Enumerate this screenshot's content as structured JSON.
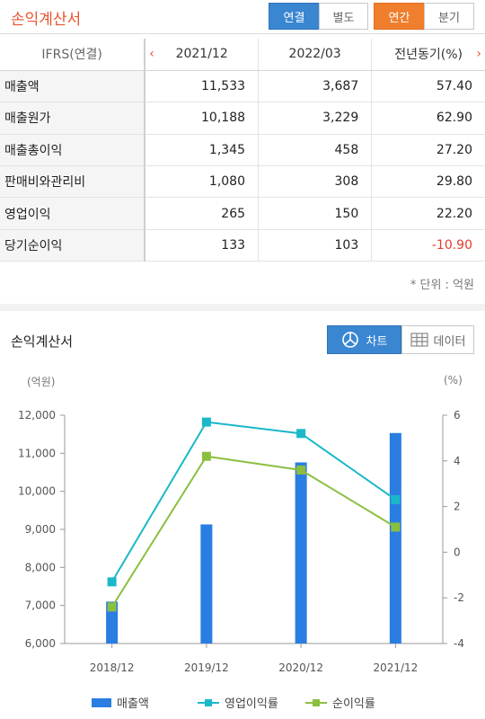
{
  "header": {
    "title": "손익계산서",
    "toggle_consolidated": "연결",
    "toggle_separate": "별도",
    "toggle_annual": "연간",
    "toggle_quarterly": "분기"
  },
  "table": {
    "label_header": "IFRS(연결)",
    "columns": [
      "2021/12",
      "2022/03",
      "전년동기(%)"
    ],
    "rows": [
      {
        "label": "매출액",
        "values": [
          "11,533",
          "3,687",
          "57.40"
        ]
      },
      {
        "label": "매출원가",
        "values": [
          "10,188",
          "3,229",
          "62.90"
        ]
      },
      {
        "label": "매출총이익",
        "values": [
          "1,345",
          "458",
          "27.20"
        ]
      },
      {
        "label": "판매비와관리비",
        "values": [
          "1,080",
          "308",
          "29.80"
        ]
      },
      {
        "label": "영업이익",
        "values": [
          "265",
          "150",
          "22.20"
        ]
      },
      {
        "label": "당기순이익",
        "values": [
          "133",
          "103",
          "-10.90"
        ]
      }
    ],
    "unit_note": "* 단위 : 억원"
  },
  "chart_section": {
    "title": "손익계산서",
    "chart_button": "차트",
    "data_button": "데이터",
    "left_unit": "(억원)",
    "right_unit": "(%)"
  },
  "colors": {
    "bar": "#2a7de1",
    "op_margin": "#1ab8c9",
    "net_margin": "#8bbf3f",
    "accent_orange": "#e8542f"
  },
  "chart_data": {
    "type": "bar",
    "categories": [
      "2018/12",
      "2019/12",
      "2020/12",
      "2021/12"
    ],
    "series": [
      {
        "name": "매출액",
        "type": "bar",
        "axis": "left",
        "values": [
          7100,
          9130,
          10760,
          11533
        ]
      },
      {
        "name": "영업이익률",
        "type": "line",
        "axis": "right",
        "values": [
          -1.3,
          5.7,
          5.2,
          2.3
        ]
      },
      {
        "name": "순이익률",
        "type": "line",
        "axis": "right",
        "values": [
          -2.4,
          4.2,
          3.6,
          1.1
        ]
      }
    ],
    "left_ticks": [
      "12,000",
      "11,000",
      "10,000",
      "9,000",
      "8,000",
      "7,000",
      "6,000"
    ],
    "right_ticks": [
      "6",
      "4",
      "2",
      "0",
      "-2",
      "-4"
    ],
    "ylim_left": [
      6000,
      12000
    ],
    "ylim_right": [
      -4,
      6
    ],
    "grid": false,
    "legend": "bottom"
  }
}
